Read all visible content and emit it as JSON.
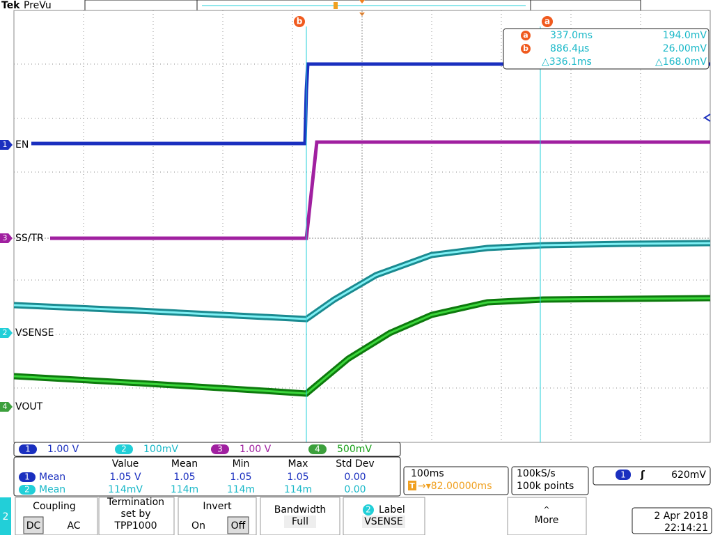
{
  "header": {
    "brand": "Tek",
    "mode": "PreVu"
  },
  "cursor_markers": {
    "a": "a",
    "b": "b"
  },
  "cursor_readout": {
    "rows": [
      {
        "marker": "a",
        "time": "337.0ms",
        "level": "194.0mV"
      },
      {
        "marker": "b",
        "time": "886.4µs",
        "level": "26.00mV"
      },
      {
        "time": "△336.1ms",
        "level": "△168.0mV"
      }
    ]
  },
  "trace_labels": [
    {
      "channel": "1",
      "name": "EN"
    },
    {
      "channel": "3",
      "name": "SS/TR"
    },
    {
      "channel": "2",
      "name": "VSENSE"
    },
    {
      "channel": "4",
      "name": "VOUT"
    }
  ],
  "channel_scales": [
    {
      "channel": "1",
      "scale": "1.00 V"
    },
    {
      "channel": "2",
      "scale": "100mV"
    },
    {
      "channel": "3",
      "scale": "1.00 V"
    },
    {
      "channel": "4",
      "scale": "500mV"
    }
  ],
  "measurements": {
    "headers": [
      "Value",
      "Mean",
      "Min",
      "Max",
      "Std Dev"
    ],
    "rows": [
      {
        "channel": "1",
        "name": "Mean",
        "cells": [
          "1.05 V",
          "1.05",
          "1.05",
          "1.05",
          "0.00"
        ]
      },
      {
        "channel": "2",
        "name": "Mean",
        "cells": [
          "114mV",
          "114m",
          "114m",
          "114m",
          "0.00"
        ]
      }
    ]
  },
  "timebase": {
    "scale": "100ms",
    "trigger_icon": "T",
    "position": "→▾82.00000ms"
  },
  "acquisition": {
    "rate": "100kS/s",
    "points": "100k points"
  },
  "trigger": {
    "channel": "1",
    "slope": "ʃ",
    "level": "620mV"
  },
  "menu": {
    "channel": "2",
    "coupling": {
      "title": "Coupling",
      "options": [
        "DC",
        "AC"
      ]
    },
    "termination": [
      "Termination",
      "set by",
      "TPP1000"
    ],
    "invert": {
      "title": "Invert",
      "options": [
        "On",
        "Off"
      ]
    },
    "bandwidth": {
      "title": "Bandwidth",
      "value": "Full"
    },
    "label": {
      "channel": "2",
      "title": "Label",
      "value": "VSENSE"
    },
    "more": {
      "arrow": "^",
      "title": "More"
    }
  },
  "datetime": {
    "date": "2 Apr 2018",
    "time": "22:14:21"
  }
}
